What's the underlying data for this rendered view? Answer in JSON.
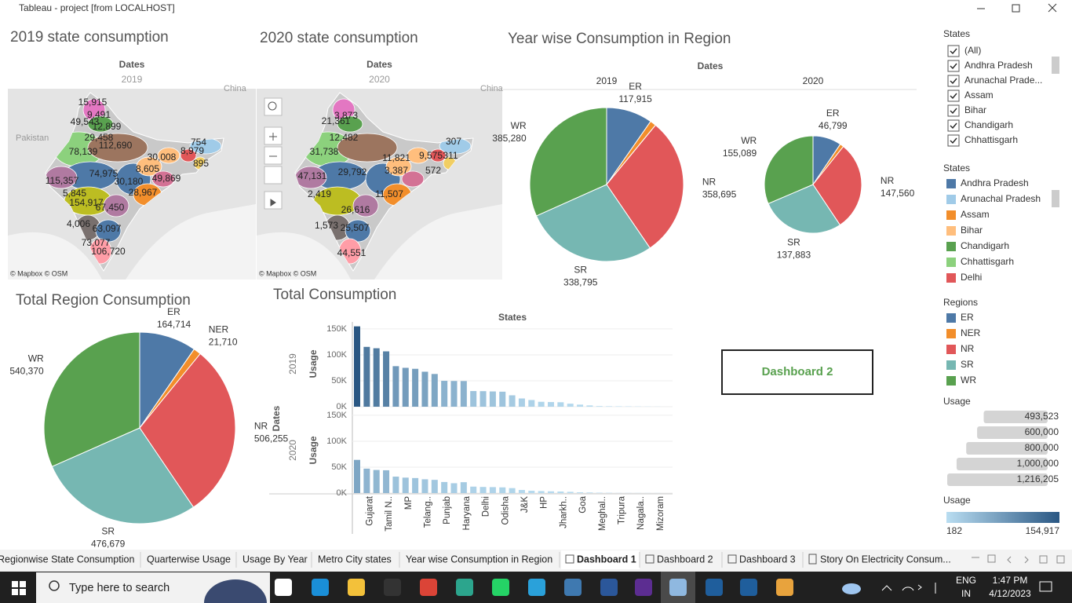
{
  "window": {
    "title": "Tableau - project [from LOCALHOST]"
  },
  "maps": [
    {
      "title": "2019 state consumption",
      "header": "Dates",
      "year": "2019",
      "country_labels": [
        "Pakistan",
        "China"
      ],
      "attribution": "© Mapbox © OSM",
      "labels": [
        "15,915",
        "9,491",
        "49,543",
        "12,899",
        "29,458",
        "112,690",
        "78,139",
        "754",
        "8,979",
        "30,008",
        "895",
        "74,975",
        "8,605",
        "30,180",
        "49,869",
        "115,357",
        "28,967",
        "5,845",
        "154,917",
        "67,450",
        "4,006",
        "63,097",
        "73,077",
        "106,720"
      ]
    },
    {
      "title": "2020 state consumption",
      "header": "Dates",
      "year": "2020",
      "country_labels": [
        "China"
      ],
      "attribution": "© Mapbox © OSM",
      "labels": [
        "3,873",
        "21,361",
        "12,482",
        "31,738",
        "11,821",
        "9,575",
        "311",
        "307",
        "47,131",
        "29,792",
        "3,387",
        "572",
        "2,419",
        "11,507",
        "26,616",
        "1,573",
        "25,507",
        "44,551"
      ]
    }
  ],
  "regions": {
    "title": "Regions",
    "items": [
      "ER",
      "NER",
      "NR",
      "SR",
      "WR"
    ],
    "colors": [
      "#4e79a7",
      "#f28e2b",
      "#e15759",
      "#76b7b2",
      "#59a14f"
    ]
  },
  "year_pies": {
    "title": "Year wise Consumption in Region",
    "header": "Dates",
    "pies": [
      {
        "year": "2019",
        "values": [
          117915,
          15520,
          358695,
          338795,
          385280
        ],
        "value_labels": [
          "117,915",
          null,
          "358,695",
          "338,795",
          "385,280"
        ]
      },
      {
        "year": "2020",
        "values": [
          46799,
          6190,
          147560,
          137883,
          155089
        ],
        "value_labels": [
          "46,799",
          null,
          "147,560",
          "137,883",
          "155,089"
        ]
      }
    ]
  },
  "total_pie": {
    "title": "Total Region Consumption",
    "values": [
      164714,
      21710,
      506255,
      476679,
      540370
    ],
    "value_labels": [
      "164,714",
      "21,710",
      "506,255",
      "476,679",
      "540,370"
    ]
  },
  "bar_chart": {
    "title": "Total Consumption",
    "header": "States",
    "row_label": "Dates",
    "categories": [
      null,
      "Gujarat",
      null,
      "Tamil N..",
      null,
      "MP",
      null,
      "Telang..",
      null,
      "Punjab",
      null,
      "Haryana",
      null,
      "Delhi",
      null,
      "Odisha",
      null,
      "J&K",
      null,
      "HP",
      null,
      "Jharkh..",
      null,
      "Goa",
      null,
      "Meghal..",
      null,
      "Tripura",
      null,
      "Nagala..",
      null,
      "Mizoram"
    ],
    "ylim": [
      0,
      165000
    ],
    "yticks": [
      {
        "value": 0,
        "label": "0K"
      },
      {
        "value": 50000,
        "label": "50K"
      },
      {
        "value": 100000,
        "label": "100K"
      },
      {
        "value": 150000,
        "label": "150K"
      }
    ],
    "panels": [
      {
        "label": "2019",
        "axis_label": "Usage",
        "values": [
          154917,
          115357,
          112690,
          106720,
          78139,
          74975,
          73077,
          67450,
          63097,
          49869,
          49543,
          49458,
          30180,
          30008,
          29458,
          28967,
          22000,
          15915,
          12899,
          9491,
          8979,
          8605,
          5845,
          4006,
          2500,
          1200,
          895,
          754,
          600,
          400,
          300,
          182
        ]
      },
      {
        "label": "2020",
        "axis_label": "Usage",
        "values": [
          64000,
          47131,
          44551,
          44000,
          31738,
          29792,
          29000,
          26616,
          25507,
          21361,
          19000,
          21000,
          12482,
          11821,
          11507,
          11000,
          9575,
          6000,
          4500,
          3873,
          3387,
          3000,
          2419,
          1573,
          1200,
          800,
          572,
          311,
          307,
          250,
          200,
          182
        ]
      }
    ]
  },
  "dashboard_button": "Dashboard 2",
  "filter": {
    "title": "States",
    "items": [
      "(All)",
      "Andhra Pradesh",
      "Arunachal Prade...",
      "Assam",
      "Bihar",
      "Chandigarh",
      "Chhattisgarh"
    ]
  },
  "states_legend": {
    "title": "States",
    "items": [
      "Andhra Pradesh",
      "Arunachal Pradesh",
      "Assam",
      "Bihar",
      "Chandigarh",
      "Chhattisgarh",
      "Delhi"
    ],
    "colors": [
      "#4e79a7",
      "#a0cbe8",
      "#f28e2b",
      "#ffbe7d",
      "#59a14f",
      "#8cd17d",
      "#e15759"
    ]
  },
  "usage_size": {
    "title": "Usage",
    "items": [
      {
        "value": 493523,
        "label": "493,523"
      },
      {
        "value": 600000,
        "label": "600,000"
      },
      {
        "value": 800000,
        "label": "800,000"
      },
      {
        "value": 1000000,
        "label": "1,000,000"
      },
      {
        "value": 1216205,
        "label": "1,216,205"
      }
    ]
  },
  "usage_color": {
    "title": "Usage",
    "min": 182,
    "max": {
      "value": 154917,
      "label": "154,917"
    },
    "colors": [
      "#b9ddf1",
      "#2a5783"
    ]
  },
  "tabs": [
    "Regionwise State Consumption",
    "Quarterwise Usage",
    "Usage By Year",
    "Metro City states",
    "Year wise Consumption in Region",
    "Dashboard 1",
    "Dashboard 2",
    "Dashboard 3",
    "Story On Electricity Consum..."
  ],
  "active_tab": 5,
  "taskbar": {
    "search": "Type here to search",
    "lang": "ENG",
    "region": "IN",
    "time": "1:47 PM",
    "date": "4/12/2023"
  }
}
